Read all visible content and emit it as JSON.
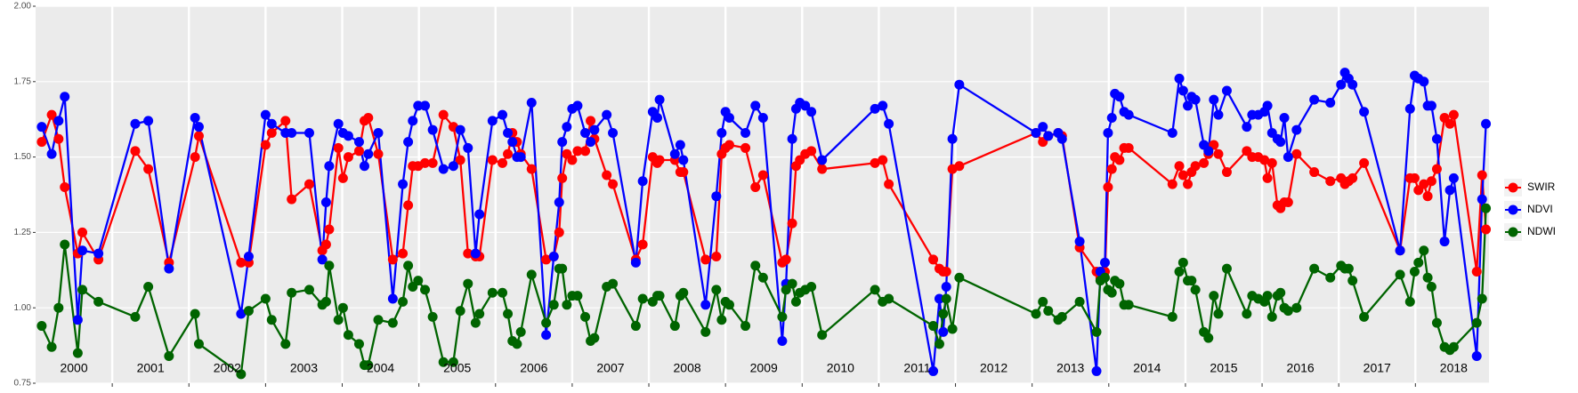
{
  "chart_data": {
    "type": "line",
    "x": [
      2000.08,
      2000.21,
      2000.3,
      2000.38,
      2000.55,
      2000.61,
      2000.82,
      2001.3,
      2001.47,
      2001.74,
      2002.08,
      2002.13,
      2002.68,
      2002.78,
      2003.0,
      2003.08,
      2003.26,
      2003.34,
      2003.57,
      2003.74,
      2003.79,
      2003.83,
      2003.95,
      2004.01,
      2004.08,
      2004.22,
      2004.29,
      2004.34,
      2004.47,
      2004.66,
      2004.79,
      2004.86,
      2004.92,
      2004.99,
      2005.08,
      2005.18,
      2005.32,
      2005.45,
      2005.54,
      2005.64,
      2005.74,
      2005.79,
      2005.96,
      2006.09,
      2006.16,
      2006.22,
      2006.28,
      2006.33,
      2006.47,
      2006.66,
      2006.76,
      2006.83,
      2006.87,
      2006.93,
      2007.0,
      2007.07,
      2007.17,
      2007.24,
      2007.29,
      2007.45,
      2007.53,
      2007.83,
      2007.92,
      2008.05,
      2008.11,
      2008.14,
      2008.34,
      2008.41,
      2008.45,
      2008.74,
      2008.88,
      2008.95,
      2009.0,
      2009.05,
      2009.26,
      2009.39,
      2009.49,
      2009.74,
      2009.79,
      2009.87,
      2009.92,
      2009.97,
      2010.04,
      2010.12,
      2010.26,
      2010.95,
      2011.05,
      2011.13,
      2011.71,
      2011.79,
      2011.84,
      2011.88,
      2011.96,
      2012.05,
      2013.05,
      2013.14,
      2013.21,
      2013.34,
      2013.39,
      2013.62,
      2013.84,
      2013.89,
      2013.95,
      2013.99,
      2014.04,
      2014.08,
      2014.14,
      2014.2,
      2014.26,
      2014.83,
      2014.92,
      2014.97,
      2015.03,
      2015.08,
      2015.13,
      2015.24,
      2015.3,
      2015.37,
      2015.43,
      2015.54,
      2015.8,
      2015.87,
      2015.95,
      2016.03,
      2016.07,
      2016.13,
      2016.2,
      2016.24,
      2016.29,
      2016.34,
      2016.45,
      2016.68,
      2016.89,
      2017.03,
      2017.08,
      2017.13,
      2017.18,
      2017.33,
      2017.8,
      2017.93,
      2017.99,
      2018.04,
      2018.11,
      2018.16,
      2018.21,
      2018.28,
      2018.38,
      2018.45,
      2018.5,
      2018.8,
      2018.87,
      2018.92
    ],
    "series": [
      {
        "name": "SWIR",
        "color": "#ff0000",
        "values": [
          1.55,
          1.64,
          1.56,
          1.4,
          1.18,
          1.25,
          1.16,
          1.52,
          1.46,
          1.15,
          1.5,
          1.57,
          1.15,
          1.15,
          1.54,
          1.58,
          1.62,
          1.36,
          1.41,
          1.19,
          1.21,
          1.26,
          1.53,
          1.43,
          1.5,
          1.52,
          1.62,
          1.63,
          1.51,
          1.16,
          1.18,
          1.34,
          1.47,
          1.47,
          1.48,
          1.48,
          1.64,
          1.6,
          1.49,
          1.18,
          1.17,
          1.17,
          1.49,
          1.48,
          1.51,
          1.58,
          1.55,
          1.51,
          1.46,
          1.16,
          1.17,
          1.25,
          1.43,
          1.51,
          1.49,
          1.52,
          1.52,
          1.62,
          1.56,
          1.44,
          1.41,
          1.16,
          1.21,
          1.5,
          1.48,
          1.49,
          1.49,
          1.45,
          1.45,
          1.16,
          1.17,
          1.51,
          1.53,
          1.54,
          1.53,
          1.4,
          1.44,
          1.15,
          1.16,
          1.28,
          1.47,
          1.49,
          1.51,
          1.52,
          1.46,
          1.48,
          1.49,
          1.41,
          1.16,
          1.13,
          1.12,
          1.12,
          1.46,
          1.47,
          1.58,
          1.55,
          1.57,
          1.58,
          1.57,
          1.2,
          1.12,
          1.1,
          1.12,
          1.4,
          1.46,
          1.5,
          1.49,
          1.53,
          1.53,
          1.41,
          1.47,
          1.44,
          1.41,
          1.45,
          1.47,
          1.48,
          1.51,
          1.54,
          1.51,
          1.45,
          1.52,
          1.5,
          1.5,
          1.49,
          1.43,
          1.48,
          1.34,
          1.33,
          1.35,
          1.35,
          1.51,
          1.45,
          1.42,
          1.43,
          1.41,
          1.42,
          1.43,
          1.48,
          1.19,
          1.43,
          1.43,
          1.39,
          1.41,
          1.37,
          1.42,
          1.46,
          1.63,
          1.61,
          1.64,
          1.12,
          1.44,
          1.26
        ]
      },
      {
        "name": "NDVI",
        "color": "#0000ff",
        "values": [
          1.6,
          1.51,
          1.62,
          1.7,
          0.96,
          1.19,
          1.18,
          1.61,
          1.62,
          1.13,
          1.63,
          1.6,
          0.98,
          1.17,
          1.64,
          1.61,
          1.58,
          1.58,
          1.58,
          1.16,
          1.35,
          1.47,
          1.61,
          1.58,
          1.57,
          1.55,
          1.47,
          1.51,
          1.58,
          1.03,
          1.41,
          1.55,
          1.62,
          1.67,
          1.67,
          1.59,
          1.46,
          1.47,
          1.59,
          1.53,
          1.18,
          1.31,
          1.62,
          1.64,
          1.58,
          1.55,
          1.5,
          1.5,
          1.68,
          0.91,
          1.17,
          1.35,
          1.55,
          1.6,
          1.66,
          1.67,
          1.58,
          1.55,
          1.59,
          1.64,
          1.58,
          1.15,
          1.42,
          1.65,
          1.63,
          1.69,
          1.51,
          1.54,
          1.49,
          1.01,
          1.37,
          1.58,
          1.65,
          1.63,
          1.58,
          1.67,
          1.63,
          0.89,
          1.08,
          1.56,
          1.66,
          1.68,
          1.67,
          1.65,
          1.49,
          1.66,
          1.67,
          1.61,
          0.79,
          1.03,
          0.92,
          1.07,
          1.56,
          1.74,
          1.58,
          1.6,
          1.57,
          1.58,
          1.56,
          1.22,
          0.79,
          1.12,
          1.15,
          1.58,
          1.63,
          1.71,
          1.7,
          1.65,
          1.64,
          1.58,
          1.76,
          1.72,
          1.67,
          1.7,
          1.69,
          1.54,
          1.52,
          1.69,
          1.64,
          1.72,
          1.6,
          1.64,
          1.64,
          1.65,
          1.67,
          1.58,
          1.56,
          1.55,
          1.63,
          1.5,
          1.59,
          1.69,
          1.68,
          1.74,
          1.78,
          1.76,
          1.74,
          1.65,
          1.19,
          1.66,
          1.77,
          1.76,
          1.75,
          1.67,
          1.67,
          1.56,
          1.22,
          1.39,
          1.43,
          0.84,
          1.36,
          1.61
        ]
      },
      {
        "name": "NDWI",
        "color": "#006400",
        "values": [
          0.94,
          0.87,
          1.0,
          1.21,
          0.85,
          1.06,
          1.02,
          0.97,
          1.07,
          0.84,
          0.98,
          0.88,
          0.78,
          0.99,
          1.03,
          0.96,
          0.88,
          1.05,
          1.06,
          1.01,
          1.02,
          1.14,
          0.96,
          1.0,
          0.91,
          0.88,
          0.81,
          0.81,
          0.96,
          0.95,
          1.02,
          1.14,
          1.07,
          1.09,
          1.06,
          0.97,
          0.82,
          0.82,
          0.99,
          1.08,
          0.95,
          0.98,
          1.05,
          1.05,
          0.98,
          0.89,
          0.88,
          0.92,
          1.11,
          0.95,
          1.01,
          1.13,
          1.13,
          1.01,
          1.04,
          1.04,
          0.97,
          0.89,
          0.9,
          1.07,
          1.08,
          0.94,
          1.03,
          1.02,
          1.04,
          1.04,
          0.94,
          1.04,
          1.05,
          0.92,
          1.06,
          0.96,
          1.02,
          1.01,
          0.94,
          1.14,
          1.1,
          0.97,
          1.06,
          1.08,
          1.02,
          1.05,
          1.06,
          1.07,
          0.91,
          1.06,
          1.02,
          1.03,
          0.94,
          0.88,
          0.98,
          1.03,
          0.93,
          1.1,
          0.98,
          1.02,
          0.99,
          0.96,
          0.97,
          1.02,
          0.92,
          1.09,
          1.1,
          1.06,
          1.05,
          1.09,
          1.08,
          1.01,
          1.01,
          0.97,
          1.12,
          1.15,
          1.09,
          1.09,
          1.06,
          0.92,
          0.9,
          1.04,
          0.98,
          1.13,
          0.98,
          1.04,
          1.03,
          1.02,
          1.04,
          0.97,
          1.04,
          1.05,
          1.0,
          0.99,
          1.0,
          1.13,
          1.1,
          1.14,
          1.13,
          1.13,
          1.09,
          0.97,
          1.11,
          1.02,
          1.12,
          1.15,
          1.19,
          1.1,
          1.07,
          0.95,
          0.87,
          0.86,
          0.87,
          0.95,
          1.03,
          1.33
        ]
      }
    ],
    "xlim": [
      2000,
      2018.96
    ],
    "xgrid": [
      2001,
      2002,
      2003,
      2004,
      2005,
      2006,
      2007,
      2008,
      2009,
      2010,
      2011,
      2012,
      2013,
      2014,
      2015,
      2016,
      2017,
      2018
    ],
    "ylim": [
      0.75,
      2.0
    ],
    "yticks": [
      {
        "value": 0.75,
        "label": "0.75"
      },
      {
        "value": 1.0,
        "label": "1.00"
      },
      {
        "value": 1.25,
        "label": "1.25"
      },
      {
        "value": 1.5,
        "label": "1.50"
      },
      {
        "value": 1.75,
        "label": "1.75"
      },
      {
        "value": 2.0,
        "label": "2.00"
      }
    ],
    "grid": true,
    "legend": "right",
    "year_labels": [
      {
        "x": 2000.5,
        "label": "2000"
      },
      {
        "x": 2001.5,
        "label": "2001"
      },
      {
        "x": 2002.5,
        "label": "2002"
      },
      {
        "x": 2003.5,
        "label": "2003"
      },
      {
        "x": 2004.5,
        "label": "2004"
      },
      {
        "x": 2005.5,
        "label": "2005"
      },
      {
        "x": 2006.5,
        "label": "2006"
      },
      {
        "x": 2007.5,
        "label": "2007"
      },
      {
        "x": 2008.5,
        "label": "2008"
      },
      {
        "x": 2009.5,
        "label": "2009"
      },
      {
        "x": 2010.5,
        "label": "2010"
      },
      {
        "x": 2011.5,
        "label": "2011"
      },
      {
        "x": 2012.5,
        "label": "2012"
      },
      {
        "x": 2013.5,
        "label": "2013"
      },
      {
        "x": 2014.5,
        "label": "2014"
      },
      {
        "x": 2015.5,
        "label": "2015"
      },
      {
        "x": 2016.5,
        "label": "2016"
      },
      {
        "x": 2017.5,
        "label": "2017"
      },
      {
        "x": 2018.5,
        "label": "2018"
      }
    ]
  }
}
